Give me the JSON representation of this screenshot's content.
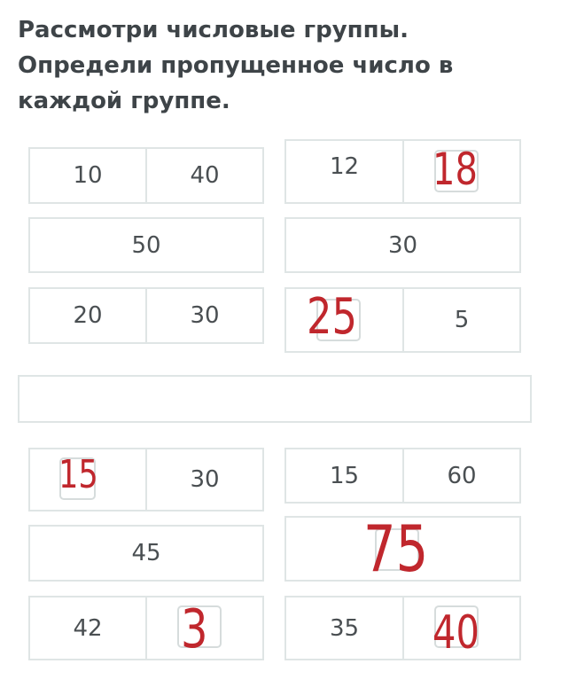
{
  "title": "Рассмотри числовые группы. Определи пропущенное число в каждой группе.",
  "groups": [
    {
      "top_left": "10",
      "top_right": "40",
      "middle": "50",
      "bottom_left": "20",
      "bottom_right": "30"
    },
    {
      "top_left": "12",
      "top_right": "",
      "middle": "30",
      "bottom_left": "",
      "bottom_right": "5"
    },
    {
      "top_left": "",
      "top_right": "30",
      "middle": "45",
      "bottom_left": "42",
      "bottom_right": ""
    },
    {
      "top_left": "15",
      "top_right": "60",
      "middle": "",
      "bottom_left": "35",
      "bottom_right": ""
    }
  ],
  "handwritten_answers": {
    "g2_top_right": "18",
    "g2_bottom_left": "25",
    "g3_top_left": "15",
    "g4_middle": "75",
    "g3_bottom_right": "3",
    "g4_bottom_right": "40"
  },
  "colors": {
    "handwriting": "#c0272d",
    "border": "#dfe5e5"
  }
}
